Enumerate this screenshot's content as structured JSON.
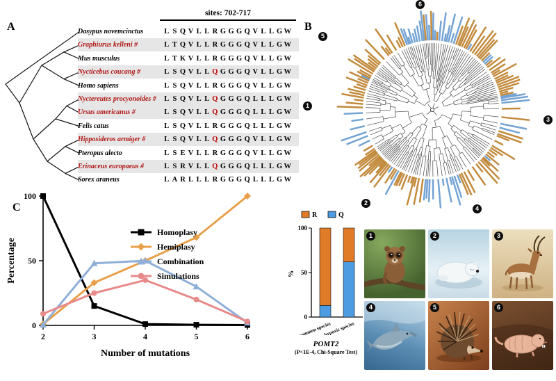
{
  "panel_a": {
    "label": "A",
    "sites_header": "sites: 702-717",
    "special_index": 6,
    "rows": [
      {
        "name": "Dasypus novemcinctus",
        "red": false,
        "highlight": false,
        "seq": "LSQVLLRGGGQVLLGW"
      },
      {
        "name": "Graphiurus kelleni #",
        "red": true,
        "highlight": true,
        "seq": "LTQVLLRGGGQVLLGW"
      },
      {
        "name": "Mus musculus",
        "red": false,
        "highlight": false,
        "seq": "LTKVLLRGGGQVLLGW"
      },
      {
        "name": "Nycticebus coucang #",
        "red": true,
        "highlight": true,
        "seq": "LSQVLLQGGGQVLLGW"
      },
      {
        "name": "Homo sapiens",
        "red": false,
        "highlight": false,
        "seq": "LSQVLLRGGGQVLLGW"
      },
      {
        "name": "Nyctereutes procyonoides #",
        "red": true,
        "highlight": true,
        "seq": "LSQVLLQGGGQLLLGW"
      },
      {
        "name": "Ursus americanus #",
        "red": true,
        "highlight": true,
        "seq": "LSQVLLQGGGQLLLGW"
      },
      {
        "name": "Felis catus",
        "red": false,
        "highlight": false,
        "seq": "LSQVLLRGGGQLLLGW"
      },
      {
        "name": "Hipposideros armiger #",
        "red": true,
        "highlight": true,
        "seq": "LSQVLLQGGGQVLLGW"
      },
      {
        "name": "Pteropus alecto",
        "red": false,
        "highlight": false,
        "seq": "LSEVLLRGGGQVLLGW"
      },
      {
        "name": "Erinaceus europaeus #",
        "red": true,
        "highlight": true,
        "seq": "LSRVLLQGGGQLLLGW"
      },
      {
        "name": "Sorex araneus",
        "red": false,
        "highlight": false,
        "seq": "LARLLLRGGGQLLLGW"
      }
    ]
  },
  "panel_b": {
    "label": "B",
    "markers": [
      "1",
      "2",
      "3",
      "4",
      "5",
      "6"
    ],
    "leaf_colors": {
      "orange": "#C28A3C",
      "blue": "#74A3D4"
    }
  },
  "panel_c": {
    "label": "C"
  },
  "chart_data": [
    {
      "type": "line",
      "x": [
        2,
        3,
        4,
        5,
        6
      ],
      "xlabel": "Number of mutations",
      "ylabel": "Percentage",
      "ylim": [
        0,
        100
      ],
      "yticks": [
        0,
        50,
        100
      ],
      "grid": false,
      "legend_position": "center-right",
      "series": [
        {
          "name": "Homoplasy",
          "color": "#000000",
          "marker": "square",
          "values": [
            100,
            15,
            1,
            0.5,
            0.3
          ]
        },
        {
          "name": "Hemiplasy",
          "color": "#E8A04B",
          "marker": "diamond",
          "values": [
            1,
            33,
            50,
            68,
            100
          ]
        },
        {
          "name": "Combination",
          "color": "#8FAFD8",
          "marker": "triangle",
          "values": [
            0.5,
            48,
            50,
            30,
            2
          ]
        },
        {
          "name": "Simulations",
          "color": "#E88A8A",
          "marker": "circle",
          "values": [
            9,
            25,
            35,
            20,
            3
          ]
        }
      ]
    },
    {
      "type": "stacked-bar",
      "categories": [
        "common species",
        "hypoxic species"
      ],
      "series": [
        {
          "name": "Q",
          "color": "#4D9BE0",
          "values": [
            13,
            62
          ]
        },
        {
          "name": "R",
          "color": "#E07B28",
          "values": [
            87,
            38
          ]
        }
      ],
      "legend_order": [
        "R",
        "Q"
      ],
      "ylabel": "%",
      "ylim": [
        0,
        100
      ],
      "yticks": [
        0,
        50,
        100
      ],
      "title": "POMT2",
      "subtitle": "(P<1E-4, Chi-Square Test)"
    }
  ],
  "animals": [
    {
      "number": "1",
      "name": "slow loris"
    },
    {
      "number": "2",
      "name": "polar bear"
    },
    {
      "number": "3",
      "name": "antelope"
    },
    {
      "number": "4",
      "name": "dolphin"
    },
    {
      "number": "5",
      "name": "hedgehog"
    },
    {
      "number": "6",
      "name": "naked mole-rat"
    }
  ]
}
